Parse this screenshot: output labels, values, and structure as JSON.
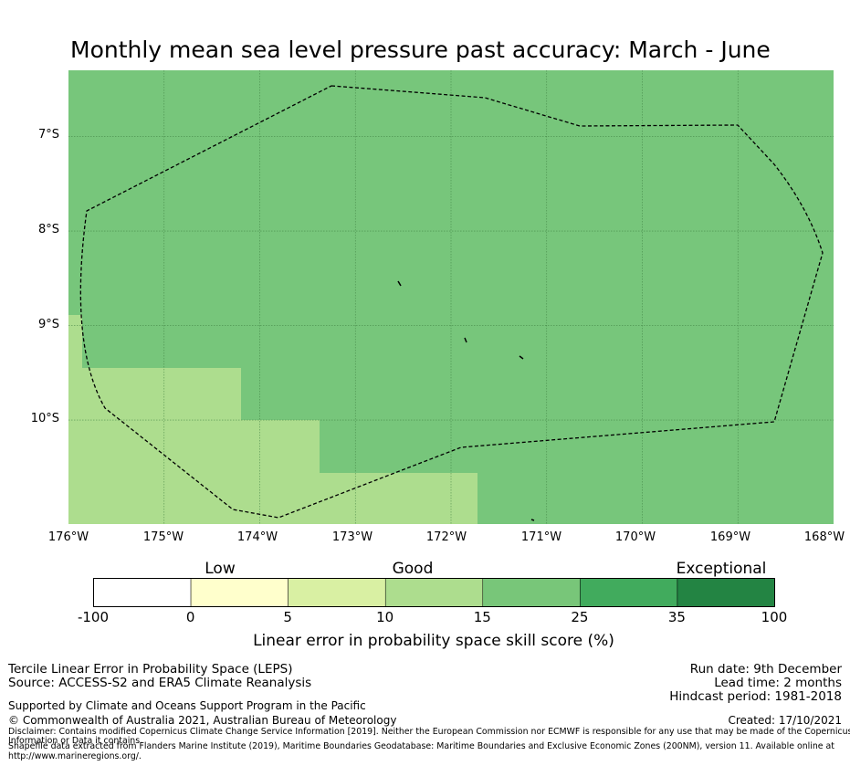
{
  "title": "Monthly mean sea level pressure past accuracy: March - June",
  "map": {
    "lat_labels": [
      "7°S",
      "8°S",
      "9°S",
      "10°S"
    ],
    "lon_labels": [
      "176°W",
      "175°W",
      "174°W",
      "173°W",
      "172°W",
      "171°W",
      "170°W",
      "169°W",
      "168°W"
    ],
    "lon_range": [
      -176,
      -168
    ],
    "lat_range": [
      -11.1,
      -6.3
    ],
    "region_colors": {
      "good_15_25": "#77c67b",
      "good_10_15": "#addd8e",
      "grid": "#3d7d3f",
      "boundary": "#000000"
    }
  },
  "legend": {
    "category_labels": [
      "Low",
      "Good",
      "Exceptional"
    ],
    "ticks": [
      "-100",
      "0",
      "5",
      "10",
      "15",
      "25",
      "35",
      "100"
    ],
    "bins": [
      {
        "range": "-100 to 0",
        "color": "#ffffff"
      },
      {
        "range": "0 to 5",
        "color": "#ffffcc"
      },
      {
        "range": "5 to 10",
        "color": "#d9f0a3"
      },
      {
        "range": "10 to 15",
        "color": "#addd8e"
      },
      {
        "range": "15 to 25",
        "color": "#78c679"
      },
      {
        "range": "25 to 35",
        "color": "#41ab5d"
      },
      {
        "range": "35 to 100",
        "color": "#238443"
      }
    ],
    "axis_label": "Linear error in probability space skill score (%)"
  },
  "info": {
    "method": "Tercile Linear Error in Probability Space (LEPS)",
    "source": "Source: ACCESS-S2 and ERA5 Climate Reanalysis",
    "support": "Supported by Climate and Oceans Support Program in the Pacific",
    "copyright": "© Commonwealth of Australia 2021, Australian Bureau of Meteorology",
    "run_date": "Run date: 9th December",
    "lead_time": "Lead time: 2 months",
    "hindcast": "Hindcast period: 1981-2018",
    "created": "Created: 17/10/2021",
    "disclaimer_1": "Disclaimer: Contains modified Copernicus Climate Change Service Information [2019]. Neither the European Commission nor ECMWF is responsible for any use that may be made of the Copernicus",
    "disclaimer_2": "Information or Data it contains.",
    "shapefile_1": "Shapefile data extracted from Flanders Marine Institute (2019), Maritime Boundaries Geodatabase: Maritime Boundaries and Exclusive Economic Zones (200NM), version 11. Available online at",
    "shapefile_2": "http://www.marineregions.org/."
  }
}
